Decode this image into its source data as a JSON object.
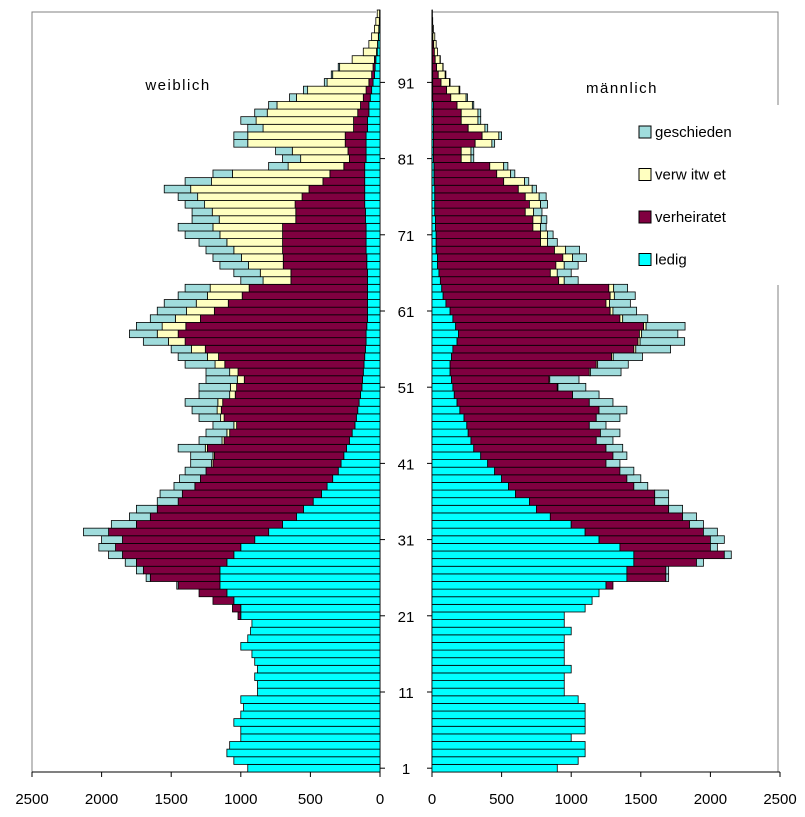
{
  "chart_data": [
    {
      "type": "bar",
      "orientation": "horizontal",
      "x_reversed": true,
      "title": "weiblich",
      "categories": [
        "1",
        null,
        null,
        null,
        null,
        null,
        null,
        null,
        null,
        null,
        "11",
        null,
        null,
        null,
        null,
        null,
        null,
        null,
        null,
        null,
        "21",
        null,
        null,
        null,
        null,
        null,
        null,
        null,
        null,
        null,
        "31",
        null,
        null,
        null,
        null,
        null,
        null,
        null,
        null,
        null,
        "41",
        null,
        null,
        null,
        null,
        null,
        null,
        null,
        null,
        null,
        "51",
        null,
        null,
        null,
        null,
        null,
        null,
        null,
        null,
        null,
        "61",
        null,
        null,
        null,
        null,
        null,
        null,
        null,
        null,
        null,
        "71",
        null,
        null,
        null,
        null,
        null,
        null,
        null,
        null,
        null,
        "81",
        null,
        null,
        null,
        null,
        null,
        null,
        null,
        null,
        null,
        "91",
        null,
        null,
        null,
        null,
        null,
        null,
        null,
        null,
        null
      ],
      "xlim": [
        0,
        2500
      ],
      "xticks": [
        2500,
        2000,
        1500,
        1000,
        500,
        0
      ],
      "series": [
        {
          "color": "#00ffff",
          "values": [
            950,
            1050,
            1100,
            1080,
            1000,
            1000,
            1050,
            1000,
            980,
            1000,
            880,
            880,
            900,
            880,
            900,
            920,
            1000,
            950,
            930,
            920,
            1000,
            1000,
            1050,
            1100,
            1150,
            1150,
            1150,
            1100,
            1050,
            1000,
            900,
            800,
            700,
            600,
            550,
            480,
            420,
            380,
            340,
            300,
            280,
            260,
            240,
            220,
            200,
            180,
            170,
            160,
            150,
            140,
            130,
            125,
            120,
            115,
            110,
            105,
            100,
            100,
            95,
            90,
            90,
            90,
            90,
            90,
            90,
            90,
            95,
            95,
            100,
            100,
            100,
            100,
            105,
            105,
            110,
            110,
            110,
            110,
            110,
            110,
            100,
            100,
            100,
            100,
            90,
            90,
            80,
            80,
            70,
            60,
            50,
            40,
            35,
            30,
            20,
            15,
            10,
            8,
            5,
            3
          ]
        },
        {
          "color": "#800040",
          "values": [
            0,
            0,
            0,
            0,
            0,
            0,
            0,
            0,
            0,
            0,
            0,
            0,
            0,
            0,
            0,
            0,
            0,
            0,
            0,
            0,
            20,
            60,
            150,
            200,
            300,
            500,
            550,
            650,
            800,
            900,
            950,
            1150,
            1050,
            1050,
            1050,
            970,
            1000,
            950,
            950,
            950,
            920,
            930,
            1000,
            900,
            880,
            850,
            950,
            980,
            980,
            900,
            900,
            850,
            900,
            1000,
            1050,
            1150,
            1300,
            1350,
            1300,
            1200,
            1100,
            1000,
            900,
            850,
            550,
            550,
            600,
            600,
            600,
            600,
            600,
            600,
            500,
            500,
            500,
            450,
            400,
            300,
            250,
            150,
            120,
            130,
            150,
            150,
            100,
            100,
            80,
            60,
            50,
            40,
            30,
            20,
            15,
            10,
            5,
            3,
            2,
            1,
            0,
            0
          ]
        },
        {
          "color": "#ffffc0",
          "values": [
            0,
            0,
            0,
            0,
            0,
            0,
            0,
            0,
            0,
            0,
            0,
            0,
            0,
            0,
            0,
            0,
            0,
            0,
            0,
            0,
            0,
            0,
            0,
            0,
            0,
            0,
            0,
            0,
            0,
            0,
            0,
            0,
            0,
            0,
            0,
            0,
            0,
            0,
            0,
            0,
            10,
            10,
            15,
            15,
            20,
            20,
            25,
            30,
            35,
            40,
            45,
            50,
            60,
            70,
            80,
            100,
            120,
            150,
            170,
            180,
            200,
            230,
            250,
            280,
            200,
            220,
            250,
            300,
            350,
            400,
            450,
            500,
            550,
            600,
            650,
            750,
            850,
            800,
            700,
            400,
            350,
            400,
            700,
            700,
            650,
            700,
            650,
            600,
            480,
            420,
            300,
            280,
            240,
            160,
            95,
            62,
            48,
            31,
            25,
            17
          ]
        },
        {
          "color": "#a0dcdc",
          "values": [
            0,
            0,
            0,
            0,
            0,
            0,
            0,
            0,
            0,
            0,
            0,
            0,
            0,
            0,
            0,
            0,
            0,
            0,
            0,
            0,
            0,
            0,
            0,
            0,
            10,
            30,
            50,
            80,
            100,
            120,
            150,
            180,
            180,
            150,
            150,
            150,
            160,
            150,
            150,
            150,
            150,
            160,
            195,
            165,
            150,
            150,
            155,
            180,
            235,
            220,
            225,
            225,
            170,
            215,
            210,
            145,
            180,
            200,
            185,
            180,
            210,
            230,
            210,
            180,
            160,
            190,
            205,
            205,
            200,
            200,
            250,
            250,
            195,
            145,
            140,
            140,
            190,
            190,
            140,
            140,
            130,
            120,
            100,
            100,
            110,
            110,
            90,
            60,
            50,
            30,
            20,
            10,
            10,
            0,
            0,
            0,
            0,
            0,
            0,
            0
          ]
        }
      ]
    },
    {
      "type": "bar",
      "orientation": "horizontal",
      "title": "männlich",
      "xlim": [
        0,
        2500
      ],
      "xticks": [
        0,
        500,
        1000,
        1500,
        2000,
        2500
      ],
      "series": [
        {
          "name": "ledig",
          "color": "#00ffff",
          "values": [
            900,
            1050,
            1100,
            1100,
            1000,
            1100,
            1100,
            1100,
            1100,
            1050,
            950,
            950,
            950,
            1000,
            950,
            950,
            950,
            950,
            1000,
            950,
            950,
            1100,
            1150,
            1200,
            1250,
            1400,
            1400,
            1450,
            1450,
            1350,
            1200,
            1100,
            1000,
            850,
            750,
            700,
            600,
            550,
            500,
            450,
            400,
            350,
            300,
            280,
            260,
            250,
            230,
            200,
            180,
            160,
            150,
            140,
            130,
            130,
            140,
            150,
            180,
            190,
            170,
            150,
            130,
            100,
            80,
            70,
            60,
            50,
            40,
            40,
            30,
            30,
            30,
            25,
            25,
            20,
            20,
            20,
            20,
            15,
            15,
            15,
            10,
            10,
            10,
            10,
            10,
            10,
            10,
            10,
            5,
            5,
            5,
            5,
            3,
            3,
            2,
            2,
            1,
            1,
            0,
            0
          ]
        },
        {
          "name": "verheiratet",
          "color": "#800040",
          "values": [
            0,
            0,
            0,
            0,
            0,
            0,
            0,
            0,
            0,
            0,
            0,
            0,
            0,
            0,
            0,
            0,
            0,
            0,
            0,
            0,
            0,
            0,
            0,
            0,
            50,
            280,
            280,
            450,
            650,
            650,
            800,
            850,
            850,
            950,
            950,
            900,
            1000,
            900,
            900,
            900,
            850,
            950,
            950,
            900,
            950,
            880,
            950,
            1000,
            950,
            850,
            750,
            700,
            1000,
            1050,
            1150,
            1300,
            1300,
            1300,
            1350,
            1200,
            1150,
            1150,
            1200,
            1200,
            850,
            800,
            850,
            900,
            850,
            750,
            750,
            700,
            700,
            650,
            680,
            650,
            600,
            500,
            450,
            400,
            200,
            200,
            300,
            350,
            250,
            200,
            200,
            170,
            130,
            100,
            60,
            40,
            30,
            20,
            15,
            10,
            5,
            3,
            1,
            0
          ]
        },
        {
          "name": "verw itw et",
          "color": "#ffffc0",
          "values": [
            0,
            0,
            0,
            0,
            0,
            0,
            0,
            0,
            0,
            0,
            0,
            0,
            0,
            0,
            0,
            0,
            0,
            0,
            0,
            0,
            0,
            0,
            0,
            0,
            0,
            0,
            0,
            0,
            0,
            0,
            0,
            0,
            0,
            0,
            0,
            0,
            0,
            0,
            0,
            0,
            0,
            0,
            0,
            0,
            0,
            0,
            0,
            0,
            0,
            0,
            5,
            6,
            8,
            10,
            12,
            14,
            15,
            16,
            18,
            20,
            20,
            25,
            30,
            35,
            40,
            50,
            60,
            70,
            80,
            50,
            50,
            55,
            60,
            60,
            80,
            100,
            100,
            150,
            100,
            100,
            70,
            70,
            120,
            120,
            120,
            120,
            120,
            110,
            110,
            90,
            60,
            50,
            45,
            35,
            23,
            18,
            14,
            6,
            4,
            3
          ]
        },
        {
          "name": "geschieden",
          "color": "#a0dcdc",
          "values": [
            0,
            0,
            0,
            0,
            0,
            0,
            0,
            0,
            0,
            0,
            0,
            0,
            0,
            0,
            0,
            0,
            0,
            0,
            0,
            0,
            0,
            0,
            0,
            0,
            0,
            20,
            20,
            50,
            50,
            50,
            100,
            100,
            100,
            100,
            100,
            100,
            100,
            100,
            100,
            100,
            100,
            100,
            120,
            120,
            140,
            120,
            170,
            200,
            170,
            190,
            200,
            210,
            220,
            220,
            210,
            250,
            320,
            260,
            280,
            180,
            170,
            150,
            150,
            100,
            100,
            100,
            100,
            100,
            100,
            70,
            40,
            40,
            40,
            60,
            50,
            50,
            30,
            30,
            30,
            30,
            20,
            20,
            20,
            20,
            20,
            20,
            20,
            10,
            10,
            5,
            5,
            5,
            2,
            2,
            0,
            0,
            0,
            0,
            0,
            0
          ]
        }
      ]
    }
  ]
}
